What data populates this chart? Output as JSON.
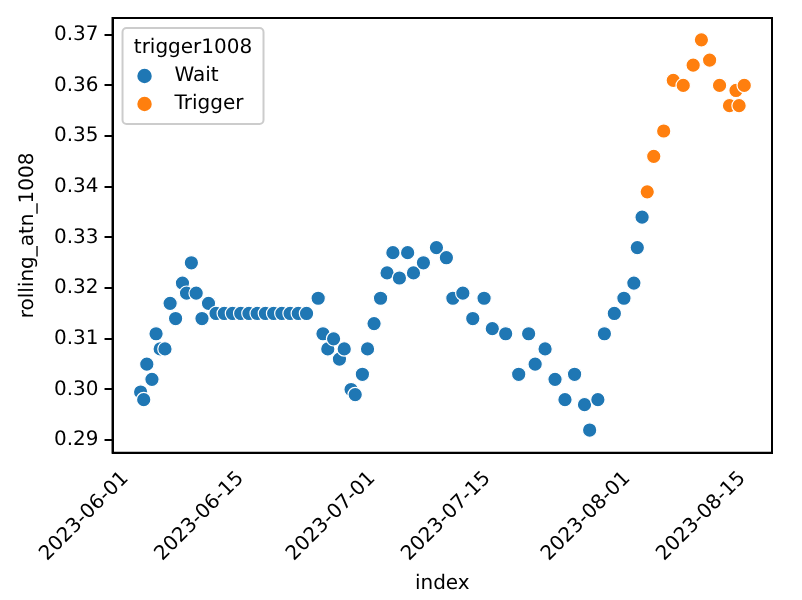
{
  "chart_data": {
    "type": "scatter",
    "xlabel": "index",
    "ylabel": "rolling_atn_1008",
    "legend_title": "trigger1008",
    "legend": "top left",
    "grid": false,
    "marker": "circle",
    "xlim": [
      "2023-05-30T10:00",
      "2023-08-18T14:00"
    ],
    "xticks": [
      "2023-06-01",
      "2023-06-15",
      "2023-07-01",
      "2023-07-15",
      "2023-08-01",
      "2023-08-15"
    ],
    "ylim": [
      0.2875,
      0.3733
    ],
    "yticks": [
      0.29,
      {
        "value": 0.3,
        "label": "0.30"
      },
      0.31,
      0.32,
      0.33,
      0.34,
      0.35,
      0.36,
      0.37
    ],
    "series": [
      {
        "name": "Wait",
        "color": "#1f77b4",
        "x": [
          "2023-06-02T20:00",
          "2023-06-03T05:00",
          "2023-06-03T14:00",
          "2023-06-04T05:00",
          "2023-06-04T17:00",
          "2023-06-05T05:00",
          "2023-06-05T19:00",
          "2023-06-06T10:00",
          "2023-06-07T02:00",
          "2023-06-07T22:00",
          "2023-06-08T10:00",
          "2023-06-09T00:00",
          "2023-06-09T14:00",
          "2023-06-10T07:00",
          "2023-06-11T02:00",
          "2023-06-12T00:00",
          "2023-06-13T00:00",
          "2023-06-14T00:00",
          "2023-06-15T00:00",
          "2023-06-16T00:00",
          "2023-06-17T00:00",
          "2023-06-18T00:00",
          "2023-06-19T00:00",
          "2023-06-20T00:00",
          "2023-06-21T00:00",
          "2023-06-22T00:00",
          "2023-06-23T00:00",
          "2023-06-24T10:00",
          "2023-06-25T00:00",
          "2023-06-25T14:00",
          "2023-06-26T07:00",
          "2023-06-27T00:00",
          "2023-06-27T14:00",
          "2023-06-28T10:00",
          "2023-06-28T22:00",
          "2023-06-29T19:00",
          "2023-06-30T10:00",
          "2023-07-01T05:00",
          "2023-07-02T00:00",
          "2023-07-02T19:00",
          "2023-07-03T12:00",
          "2023-07-04T07:00",
          "2023-07-05T07:00",
          "2023-07-06T00:00",
          "2023-07-07T05:00",
          "2023-07-08T19:00",
          "2023-07-10T00:00",
          "2023-07-10T19:00",
          "2023-07-12T00:00",
          "2023-07-13T05:00",
          "2023-07-14T14:00",
          "2023-07-15T14:00",
          "2023-07-17T05:00",
          "2023-07-18T19:00",
          "2023-07-20T00:00",
          "2023-07-20T19:00",
          "2023-07-22T00:00",
          "2023-07-23T05:00",
          "2023-07-24T10:00",
          "2023-07-25T14:00",
          "2023-07-26T19:00",
          "2023-07-27T10:00",
          "2023-07-28T10:00",
          "2023-07-29T05:00",
          "2023-07-30T10:00",
          "2023-07-31T14:00",
          "2023-08-01T19:00",
          "2023-08-02T05:00",
          "2023-08-02T19:00"
        ],
        "values": [
          0.2995,
          0.298,
          0.305,
          0.302,
          0.311,
          0.308,
          0.308,
          0.317,
          0.314,
          0.321,
          0.319,
          0.325,
          0.319,
          0.314,
          0.317,
          0.315,
          0.315,
          0.315,
          0.315,
          0.315,
          0.315,
          0.315,
          0.315,
          0.315,
          0.315,
          0.315,
          0.315,
          0.318,
          0.311,
          0.308,
          0.31,
          0.306,
          0.308,
          0.3,
          0.299,
          0.303,
          0.308,
          0.313,
          0.318,
          0.323,
          0.327,
          0.322,
          0.327,
          0.323,
          0.325,
          0.328,
          0.326,
          0.318,
          0.319,
          0.314,
          0.318,
          0.312,
          0.311,
          0.303,
          0.311,
          0.305,
          0.308,
          0.302,
          0.298,
          0.303,
          0.297,
          0.292,
          0.298,
          0.311,
          0.315,
          0.318,
          0.321,
          0.328,
          0.334
        ]
      },
      {
        "name": "Trigger",
        "color": "#ff7f0e",
        "x": [
          "2023-08-03T10:00",
          "2023-08-04T05:00",
          "2023-08-05T10:00",
          "2023-08-06T14:00",
          "2023-08-07T19:00",
          "2023-08-09T00:00",
          "2023-08-10T00:00",
          "2023-08-11T00:00",
          "2023-08-12T05:00",
          "2023-08-13T10:00",
          "2023-08-14T05:00",
          "2023-08-14T14:00",
          "2023-08-15T05:00"
        ],
        "values": [
          0.339,
          0.346,
          0.351,
          0.361,
          0.36,
          0.364,
          0.369,
          0.365,
          0.36,
          0.356,
          0.359,
          0.356,
          0.36
        ]
      }
    ]
  }
}
